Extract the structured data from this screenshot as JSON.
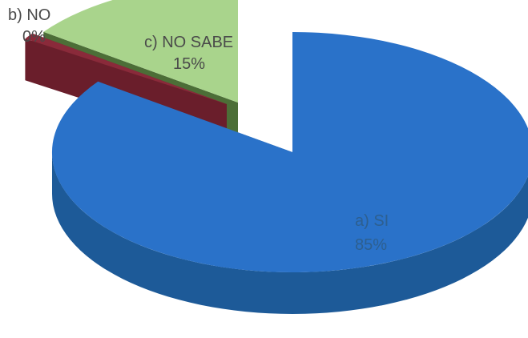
{
  "chart_data": {
    "type": "pie",
    "style": "3d-exploded",
    "slices": [
      {
        "category": "a) SI",
        "value": 85,
        "value_label": "85%",
        "color": "#2a72c9",
        "side_color": "#1d5a98"
      },
      {
        "category": "b) NO",
        "value": 0,
        "value_label": "0%",
        "color": "#8a2a3a",
        "side_color": "#6a1e2b"
      },
      {
        "category": "c) NO SABE",
        "value": 15,
        "value_label": "15%",
        "color": "#a9d48c",
        "side_color": "#4c6e37"
      }
    ]
  }
}
